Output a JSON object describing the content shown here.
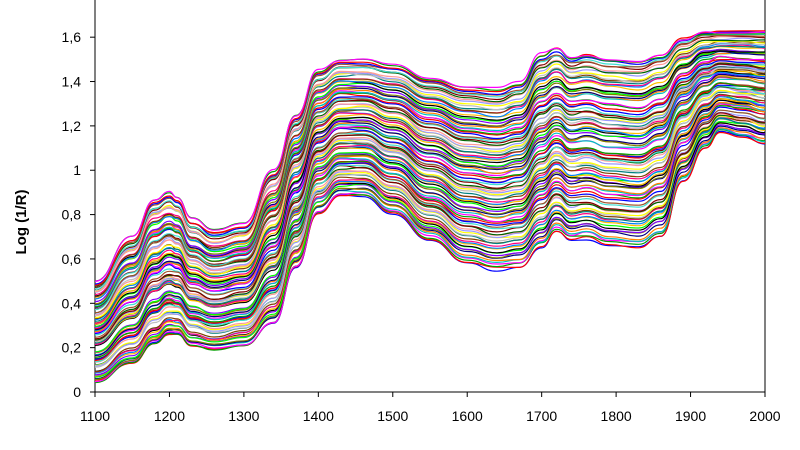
{
  "chart_data": {
    "type": "line",
    "title": "",
    "xlabel": "",
    "ylabel": "Log (1/R)",
    "xlim": [
      1100,
      2000
    ],
    "ylim": [
      0,
      1.7
    ],
    "xticks": [
      1100,
      1200,
      1300,
      1400,
      1500,
      1600,
      1700,
      1800,
      1900,
      2000
    ],
    "xtick_labels": [
      "1100",
      "1200",
      "1300",
      "1400",
      "1500",
      "1600",
      "1700",
      "1800",
      "1900",
      "2000"
    ],
    "yticks": [
      0,
      0.2,
      0.4,
      0.6,
      0.8,
      1.0,
      1.2,
      1.4,
      1.6
    ],
    "ytick_labels": [
      "0",
      "0,2",
      "0,4",
      "0,6",
      "0,8",
      "1",
      "1,2",
      "1,4",
      "1,6"
    ],
    "grid": false,
    "legend": "none",
    "series_count": 100,
    "x": [
      1100,
      1150,
      1180,
      1200,
      1210,
      1230,
      1260,
      1300,
      1340,
      1370,
      1400,
      1430,
      1460,
      1500,
      1550,
      1600,
      1640,
      1670,
      1700,
      1720,
      1740,
      1760,
      1790,
      1830,
      1860,
      1890,
      1920,
      1940,
      1970,
      2000
    ],
    "series_envelope": [
      {
        "name": "highest",
        "values": [
          0.5,
          0.7,
          0.87,
          0.9,
          0.88,
          0.78,
          0.73,
          0.76,
          1.0,
          1.25,
          1.45,
          1.5,
          1.5,
          1.48,
          1.42,
          1.38,
          1.37,
          1.4,
          1.53,
          1.56,
          1.52,
          1.53,
          1.51,
          1.5,
          1.53,
          1.6,
          1.63,
          1.63,
          1.63,
          1.63
        ]
      },
      {
        "name": "lowest",
        "values": [
          0.04,
          0.12,
          0.21,
          0.25,
          0.25,
          0.2,
          0.18,
          0.2,
          0.3,
          0.55,
          0.8,
          0.88,
          0.88,
          0.8,
          0.68,
          0.58,
          0.55,
          0.56,
          0.65,
          0.72,
          0.68,
          0.69,
          0.66,
          0.65,
          0.7,
          0.95,
          1.1,
          1.17,
          1.15,
          1.12
        ]
      }
    ],
    "palette": [
      "#0000ff",
      "#ff0000",
      "#00a000",
      "#ff00ff",
      "#00c0c0",
      "#ff8000",
      "#000080",
      "#808000",
      "#8000ff",
      "#00ff00",
      "#000000",
      "#ffc000",
      "#0080ff",
      "#ff0080",
      "#804000",
      "#008080",
      "#c0c0c0",
      "#ffff00",
      "#9999ff",
      "#ff9999",
      "#006400",
      "#800000",
      "#40e0d0",
      "#a0522d"
    ]
  }
}
